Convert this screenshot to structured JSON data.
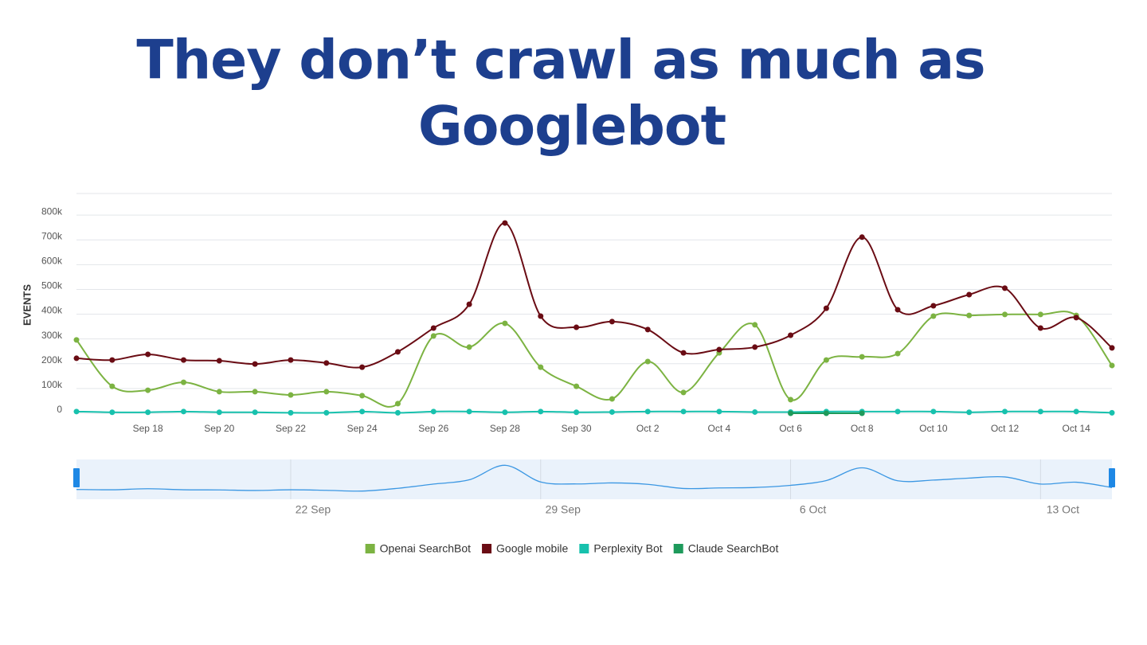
{
  "chart_data": {
    "type": "line",
    "title": [
      "They don’t crawl as much as",
      "Googlebot"
    ],
    "y_label": "EVENTS",
    "categories": [
      null,
      null,
      "Sep 18",
      null,
      "Sep 20",
      null,
      "Sep 22",
      null,
      "Sep 24",
      null,
      "Sep 26",
      null,
      "Sep 28",
      null,
      "Sep 30",
      null,
      "Oct 2",
      null,
      "Oct 4",
      null,
      "Oct 6",
      null,
      "Oct 8",
      null,
      "Oct 10",
      null,
      "Oct 12",
      null,
      "Oct 14",
      null
    ],
    "series": [
      {
        "name": "Openai SearchBot",
        "color": "#7cb342",
        "values": [
          296000,
          109000,
          93000,
          125000,
          87000,
          87000,
          74000,
          87000,
          71000,
          39000,
          312000,
          267000,
          363000,
          186000,
          109000,
          58000,
          209000,
          84000,
          244000,
          357000,
          55000,
          215000,
          228000,
          241000,
          392000,
          395000,
          399000,
          399000,
          395000,
          193000
        ]
      },
      {
        "name": "Google mobile",
        "color": "#6a0c14",
        "values": [
          222000,
          215000,
          238000,
          215000,
          212000,
          199000,
          215000,
          203000,
          186000,
          248000,
          344000,
          440000,
          768000,
          392000,
          347000,
          370000,
          338000,
          244000,
          257000,
          267000,
          315000,
          424000,
          711000,
          418000,
          434000,
          479000,
          505000,
          344000,
          386000,
          264000
        ]
      },
      {
        "name": "Perplexity Bot",
        "color": "#17c1ad",
        "values": [
          7000,
          4000,
          4000,
          7000,
          4000,
          4000,
          2000,
          2000,
          7000,
          2000,
          7000,
          7000,
          4000,
          7000,
          4000,
          5000,
          7000,
          7000,
          7000,
          5000,
          5000,
          7000,
          7000,
          7000,
          7000,
          4000,
          7000,
          7000,
          7000,
          2000
        ]
      },
      {
        "name": "Claude SearchBot",
        "color": "#1e9a5b",
        "values": [
          null,
          null,
          null,
          null,
          null,
          null,
          null,
          null,
          null,
          null,
          null,
          null,
          null,
          null,
          null,
          null,
          null,
          null,
          null,
          null,
          0,
          0,
          0,
          null,
          null,
          null,
          null,
          null,
          null,
          null
        ]
      }
    ],
    "ylim": [
      0,
      900000
    ],
    "yticks": [
      0,
      {
        "value": 100000,
        "label": "100k"
      },
      {
        "value": 200000,
        "label": "200k"
      },
      {
        "value": 300000,
        "label": "300k"
      },
      {
        "value": 400000,
        "label": "400k"
      },
      {
        "value": 500000,
        "label": "500k"
      },
      {
        "value": 600000,
        "label": "600k"
      },
      {
        "value": 700000,
        "label": "700k"
      },
      {
        "value": 800000,
        "label": "800k"
      }
    ],
    "grid": true,
    "legend": "bottom",
    "navigator": {
      "xticks": [
        "22 Sep",
        "29 Sep",
        "6 Oct",
        "13 Oct"
      ]
    }
  }
}
